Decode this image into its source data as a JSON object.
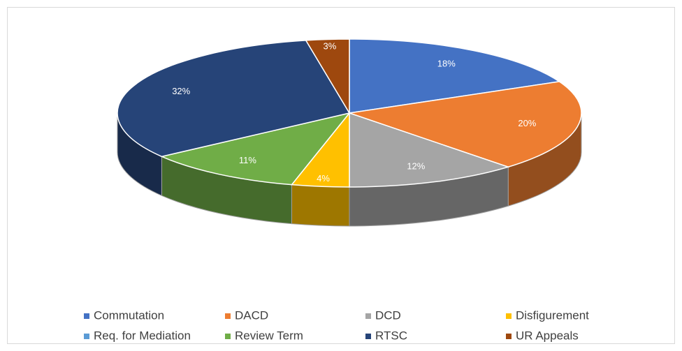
{
  "chart_data": {
    "type": "pie3d",
    "categories": [
      "Commutation",
      "DACD",
      "DCD",
      "Disfigurement",
      "Req. for Mediation",
      "Review Term",
      "RTSC",
      "UR Appeals"
    ],
    "values": [
      18,
      20,
      12,
      4,
      0,
      11,
      32,
      3
    ],
    "value_labels": [
      "18%",
      "20%",
      "12%",
      "4%",
      null,
      "11%",
      "32%",
      "3%"
    ],
    "colors": [
      "#4472c4",
      "#ed7d31",
      "#a5a5a5",
      "#ffc000",
      "#5b9bd5",
      "#70ad47",
      "#264478",
      "#9e480e"
    ],
    "legend": "bottom"
  }
}
